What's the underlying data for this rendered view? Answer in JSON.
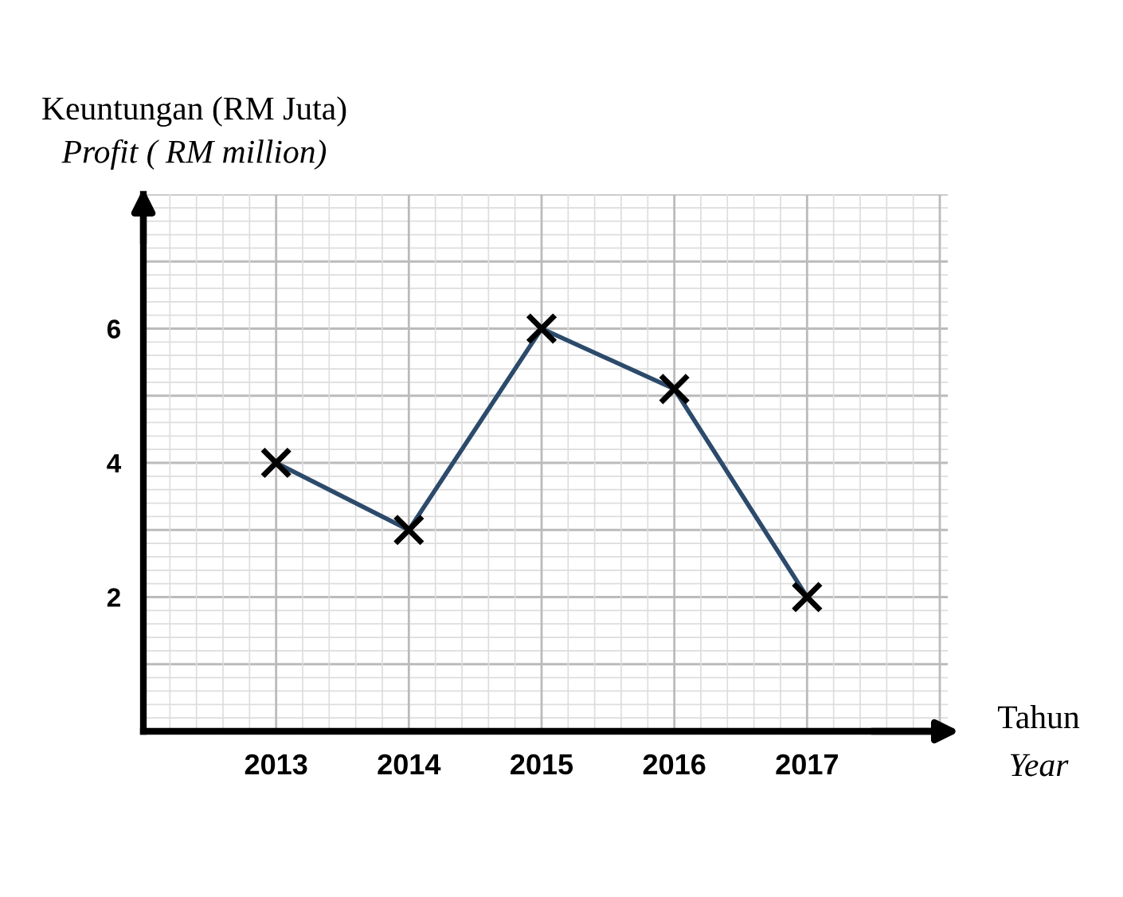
{
  "chart_data": {
    "type": "line",
    "ylabel": "Keuntungan (RM Juta)\nProfit ( RM million)",
    "xlabel": "Tahun\nYear",
    "categories": [
      "2013",
      "2014",
      "2015",
      "2016",
      "2017"
    ],
    "series": [
      {
        "color": "#2c4a6b",
        "values": [
          4,
          3,
          6,
          5.1,
          2
        ]
      }
    ],
    "ylim": [
      0,
      8
    ],
    "yticks": [
      2,
      4,
      6
    ],
    "grid": true,
    "marker": "cross",
    "line_style": "solid"
  }
}
